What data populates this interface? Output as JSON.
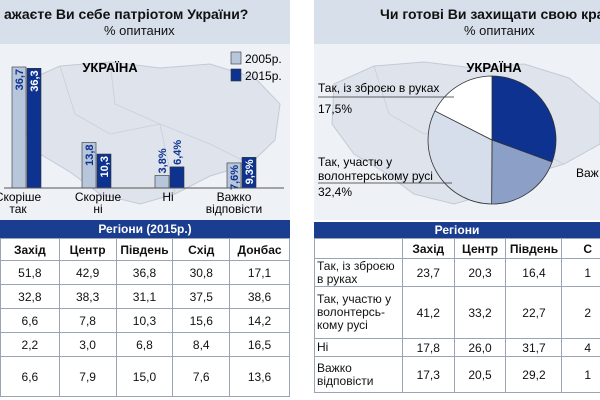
{
  "left": {
    "title": "ажаєте Ви себе патріотом України?",
    "subtitle": "% опитаних",
    "region_label": "УКРАЇНА",
    "regions_header": "Регіони (2015р.)",
    "table": {
      "columns": [
        "Захід",
        "Центр",
        "Південь",
        "Схід",
        "Донбас"
      ],
      "rows": [
        [
          "51,8",
          "42,9",
          "36,8",
          "30,8",
          "17,1"
        ],
        [
          "32,8",
          "38,3",
          "31,1",
          "37,5",
          "38,6"
        ],
        [
          "6,6",
          "7,8",
          "10,3",
          "15,6",
          "14,2"
        ],
        [
          "2,2",
          "3,0",
          "6,8",
          "8,4",
          "16,5"
        ],
        [
          "6,6",
          "7,9",
          "15,0",
          "7,6",
          "13,6"
        ]
      ]
    }
  },
  "right": {
    "title": "Чи готові Ви захищати свою кра",
    "subtitle": "% опитаних",
    "region_label": "УКРАЇНА",
    "regions_header": "Регіони",
    "table": {
      "columns": [
        "Захід",
        "Центр",
        "Південь",
        "С"
      ],
      "rows": [
        {
          "label": "Так, із зброєю в руках",
          "values": [
            "23,7",
            "20,3",
            "16,4",
            "1"
          ]
        },
        {
          "label": "Так, участю у волонтерсь-кому русі",
          "values": [
            "41,2",
            "33,2",
            "22,7",
            "2"
          ]
        },
        {
          "label": "Ні",
          "values": [
            "17,8",
            "26,0",
            "31,7",
            "4"
          ]
        },
        {
          "label": "Важко відповісти",
          "values": [
            "17,3",
            "20,5",
            "29,2",
            "1"
          ]
        }
      ]
    }
  },
  "chart_data": [
    {
      "type": "bar",
      "title": "ажаєте Ви себе патріотом України?",
      "subtitle": "% опитаних",
      "categories": [
        "Скоріше так",
        "Скоріше ні",
        "Ні",
        "Важко відповісти"
      ],
      "series": [
        {
          "name": "2005р.",
          "values": [
            36.7,
            13.8,
            3.8,
            7.6
          ],
          "labels": [
            "36,7",
            "13,8",
            "3,8%",
            "7,6%"
          ],
          "color": "#b8c6dc"
        },
        {
          "name": "2015р.",
          "values": [
            36.3,
            10.3,
            6.4,
            9.3
          ],
          "labels": [
            "36,3",
            "10,3",
            "6,4%",
            "9,3%"
          ],
          "color": "#0d3290"
        }
      ],
      "legend": "top-right"
    },
    {
      "type": "pie",
      "title": "Чи готові Ви захищати свою кра",
      "subtitle": "% опитаних",
      "slices": [
        {
          "label": "Так, із зброєю в руках",
          "value": 17.5,
          "value_label": "17,5%",
          "color": "#ffffff"
        },
        {
          "label": "Так, участю у волонтерському русі",
          "value": 32.4,
          "value_label": "32,4%",
          "color": "#d5deea"
        },
        {
          "label": "Ні",
          "value": 19.5,
          "value_label": "",
          "color": "#8c9fc6"
        },
        {
          "label": "Важко відповісти",
          "value": 30.6,
          "value_label": "",
          "color": "#0d3290"
        }
      ],
      "visible_labels": [
        "Так, із зброєю в руках",
        "Так, участю у волонтерському русі",
        "Важ"
      ]
    }
  ]
}
